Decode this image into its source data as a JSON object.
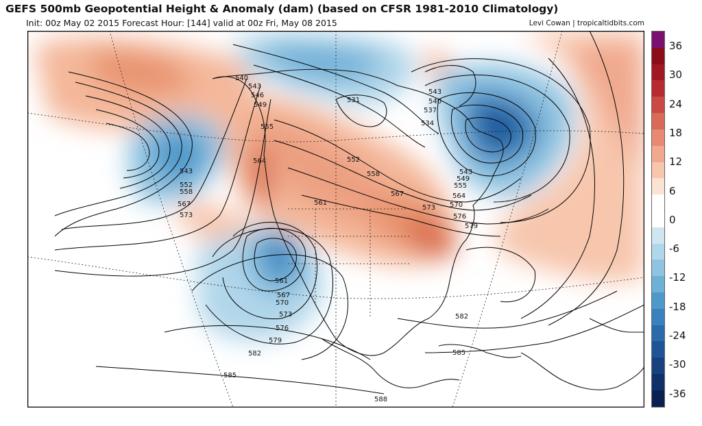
{
  "title": "GEFS 500mb Geopotential Height & Anomaly (dam) (based on CFSR 1981-2010 Climatology)",
  "subtitle": "Init: 00z May 02 2015   Forecast Hour: [144]   valid at 00z Fri, May 08 2015",
  "credit": "Levi Cowan | tropicaltidbits.com",
  "colorbar": {
    "ticks": [
      "36",
      "30",
      "24",
      "18",
      "12",
      "6",
      "0",
      "-6",
      "-12",
      "-18",
      "-24",
      "-30",
      "-36"
    ],
    "colors": [
      "#7a1070",
      "#8c0d1a",
      "#a11824",
      "#b62a30",
      "#c94a44",
      "#d96a58",
      "#e88a72",
      "#f0a98e",
      "#f7c6ad",
      "#fbe2d3",
      "#ffffff",
      "#ffffff",
      "#cfe6f1",
      "#b0d6ea",
      "#8fc3e1",
      "#6fb0d7",
      "#4f99ca",
      "#3a82bd",
      "#2b6aab",
      "#1f5596",
      "#17427f",
      "#0f3068",
      "#0a2050"
    ]
  },
  "contour_labels": [
    "540",
    "543",
    "546",
    "549",
    "555",
    "564",
    "543",
    "552",
    "558",
    "567",
    "573",
    "531",
    "552",
    "558",
    "561",
    "567",
    "573",
    "570",
    "576",
    "579",
    "543",
    "540",
    "537",
    "534",
    "543",
    "549",
    "555",
    "564",
    "561",
    "567",
    "570",
    "573",
    "576",
    "579",
    "582",
    "585",
    "582",
    "585",
    "588"
  ],
  "map_icons": [
    "land-outline-icon",
    "height-contour-icon",
    "anomaly-shading-icon"
  ]
}
